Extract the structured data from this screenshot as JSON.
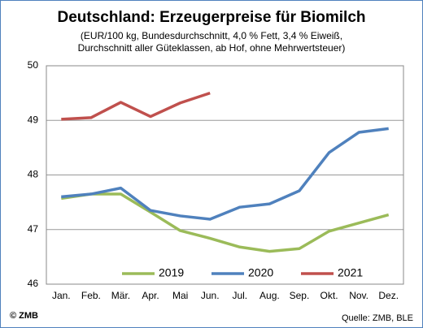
{
  "chart_data": {
    "type": "line",
    "title": "Deutschland: Erzeugerpreise für Biomilch",
    "subtitle": [
      "(EUR/100 kg, Bundesdurchschnitt, 4,0 % Fett, 3,4 % Eiweiß,",
      "Durchschnitt aller Güteklassen, ab Hof, ohne Mehrwertsteuer)"
    ],
    "categories": [
      "Jan.",
      "Feb.",
      "Mär.",
      "Apr.",
      "Mai",
      "Jun.",
      "Jul.",
      "Aug.",
      "Sep.",
      "Okt.",
      "Nov.",
      "Dez."
    ],
    "series": [
      {
        "name": "2019",
        "color": "#9bbb59",
        "values": [
          47.57,
          47.65,
          47.65,
          47.32,
          46.98,
          46.84,
          46.68,
          46.6,
          46.65,
          46.97,
          47.12,
          47.27
        ]
      },
      {
        "name": "2020",
        "color": "#4f81bd",
        "values": [
          47.6,
          47.65,
          47.76,
          47.35,
          47.25,
          47.19,
          47.41,
          47.47,
          47.71,
          48.41,
          48.78,
          48.85
        ]
      },
      {
        "name": "2021",
        "color": "#c0504d",
        "values": [
          49.02,
          49.05,
          49.33,
          49.07,
          49.32,
          49.5,
          null,
          null,
          null,
          null,
          null,
          null
        ]
      }
    ],
    "ylim": [
      46,
      50
    ],
    "yticks": [
      46,
      47,
      48,
      49,
      50
    ],
    "grid": true,
    "legend": "bottom",
    "footer_left": "© ZMB",
    "footer_right": "Quelle: ZMB, BLE"
  }
}
